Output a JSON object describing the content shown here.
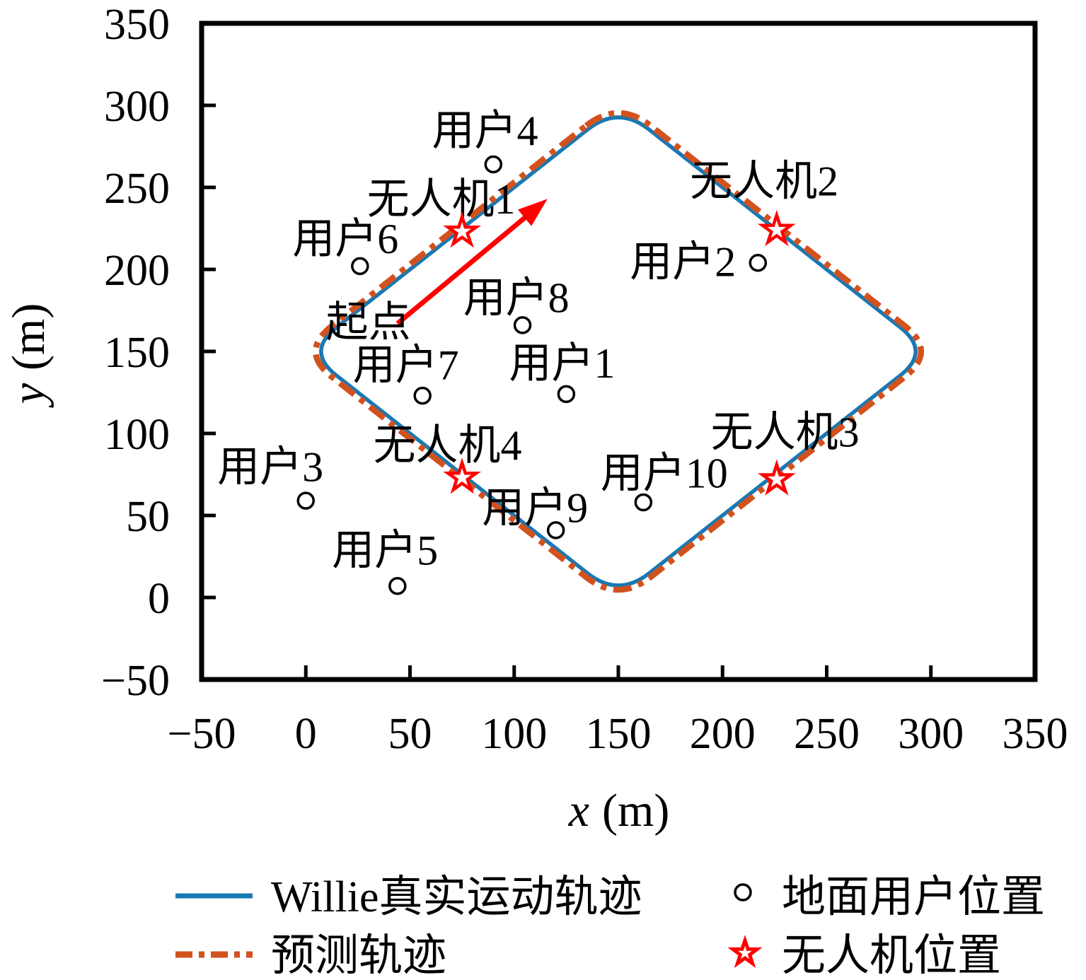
{
  "figure": {
    "description": "UAV trajectory plot with ground users and four UAV positions"
  },
  "legend": {
    "items": [
      {
        "label": "Willie真实运动轨迹",
        "marker": "solid-line",
        "color": "#1878b4"
      },
      {
        "label": "预测轨迹",
        "marker": "dash-dot-line",
        "color": "#d2521e"
      },
      {
        "label": "地面用户位置",
        "marker": "open-circle",
        "color": "#000000"
      },
      {
        "label": "无人机位置",
        "marker": "open-red-star",
        "color": "#ff0000"
      }
    ]
  },
  "chart_data": {
    "type": "line",
    "title": "",
    "xlabel_var": "x",
    "xlabel_unit": "(m)",
    "ylabel_var": "y",
    "ylabel_unit": "(m)",
    "xlim": [
      -50,
      350
    ],
    "ylim": [
      -50,
      350
    ],
    "xticks": [
      -50,
      0,
      50,
      100,
      150,
      200,
      250,
      300,
      350
    ],
    "yticks": [
      -50,
      0,
      50,
      100,
      150,
      200,
      250,
      300,
      350
    ],
    "grid": false,
    "legend_position": "below-plot, two columns",
    "colors": {
      "true_traj": "#1878b4",
      "pred_traj": "#d2521e",
      "red": "#ff0000",
      "uav_label_blue": "#0000ff",
      "text": "#000000"
    },
    "series": [
      {
        "name": "Willie真实运动轨迹",
        "style": "solid",
        "shape": "closed rounded-diamond loop",
        "vertices": [
          [
            150,
            300
          ],
          [
            300,
            150
          ],
          [
            150,
            0
          ],
          [
            0,
            150
          ]
        ]
      },
      {
        "name": "预测轨迹",
        "style": "dashdot",
        "shape": "closed rounded-diamond loop, slightly outside true trajectory",
        "vertices": [
          [
            150,
            303
          ],
          [
            303,
            150
          ],
          [
            150,
            -3
          ],
          [
            -3,
            150
          ]
        ]
      }
    ],
    "ground_users": [
      {
        "label": "用户1",
        "x": 125,
        "y": 124,
        "lx": 123,
        "ly": 143
      },
      {
        "label": "用户2",
        "x": 217,
        "y": 204,
        "lx": 181,
        "ly": 205
      },
      {
        "label": "用户3",
        "x": 0,
        "y": 59,
        "lx": -17,
        "ly": 80
      },
      {
        "label": "用户4",
        "x": 90,
        "y": 264,
        "lx": 86,
        "ly": 285
      },
      {
        "label": "用户5",
        "x": 44,
        "y": 7,
        "lx": 38,
        "ly": 29
      },
      {
        "label": "用户6",
        "x": 26,
        "y": 202,
        "lx": 19,
        "ly": 219
      },
      {
        "label": "用户7",
        "x": 56,
        "y": 123,
        "lx": 48,
        "ly": 142
      },
      {
        "label": "用户8",
        "x": 104,
        "y": 166,
        "lx": 101,
        "ly": 183
      },
      {
        "label": "用户9",
        "x": 120,
        "y": 41,
        "lx": 110,
        "ly": 55
      },
      {
        "label": "用户10",
        "x": 162,
        "y": 58,
        "lx": 172,
        "ly": 76
      }
    ],
    "uavs": [
      {
        "label": "无人机1",
        "x": 75,
        "y": 223,
        "lx": 65,
        "ly": 243
      },
      {
        "label": "无人机2",
        "x": 226,
        "y": 224,
        "lx": 220,
        "ly": 254
      },
      {
        "label": "无人机3",
        "x": 226,
        "y": 72,
        "lx": 230,
        "ly": 101
      },
      {
        "label": "无人机4",
        "x": 75,
        "y": 73,
        "lx": 68,
        "ly": 93
      }
    ],
    "annotation": {
      "label": "起点",
      "label_x": 30,
      "label_y": 168,
      "arrow_x1": 44,
      "arrow_y1": 167,
      "arrow_x2": 116,
      "arrow_y2": 243
    }
  }
}
